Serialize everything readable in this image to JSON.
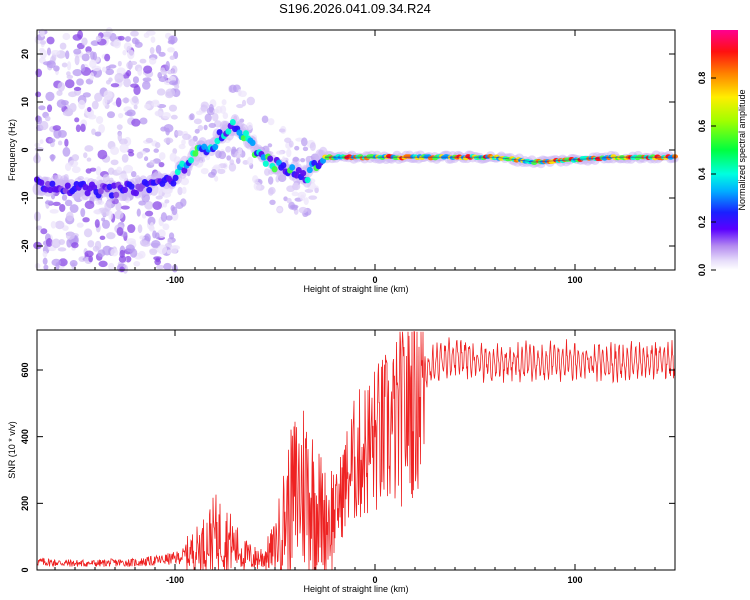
{
  "title": "S196.2026.041.09.34.R24",
  "colors": {
    "snr_line": "#ee2222",
    "spectrum_line": "#3a0a9a",
    "frame": "#000000",
    "background": "#ffffff"
  },
  "chart_data": [
    {
      "type": "heatmap",
      "title": "S196.2026.041.09.34.R24",
      "xlabel": "Height of straight line (km)",
      "ylabel": "Frequency (Hz)",
      "xlim": [
        -169,
        150
      ],
      "ylim": [
        -25,
        25
      ],
      "xticks": [
        -100,
        0,
        100
      ],
      "xtick_labels": [
        "-100",
        "0",
        "100"
      ],
      "yticks": [
        -20,
        -10,
        0,
        10,
        20
      ],
      "ytick_labels": [
        "-20",
        "-10",
        "0",
        "10",
        "20"
      ],
      "grid": false,
      "peak_ridge": {
        "x": [
          -169,
          -150,
          -135,
          -120,
          -110,
          -100,
          -95,
          -90,
          -85,
          -80,
          -75,
          -70,
          -65,
          -60,
          -55,
          -50,
          -45,
          -40,
          -35,
          -30,
          -25,
          -20,
          -10,
          0,
          20,
          40,
          60,
          80,
          100,
          120,
          150
        ],
        "frequency": [
          -7,
          -8,
          -8.5,
          -8,
          -7,
          -6,
          -3,
          -1,
          0.5,
          1.5,
          4,
          5,
          3,
          0,
          -2,
          -3,
          -4,
          -4.5,
          -6,
          -3,
          -1.5,
          -1.5,
          -1.5,
          -1.5,
          -1.5,
          -1.5,
          -1.5,
          -2.5,
          -2,
          -1.5,
          -1.5
        ]
      },
      "colorbar": {
        "label": "Normalized spectral amplitude",
        "range": [
          0,
          1
        ],
        "ticks": [
          0.0,
          0.2,
          0.4,
          0.6,
          0.8
        ],
        "tick_labels": [
          "0.0",
          "0.2",
          "0.4",
          "0.6",
          "0.8"
        ],
        "colormap": [
          "#ffffff",
          "#d6c8f5",
          "#7a2dd8",
          "#2a00ff",
          "#00a0ff",
          "#00ffff",
          "#00ff40",
          "#ffff00",
          "#ff8000",
          "#ff0000",
          "#ff0090"
        ]
      }
    },
    {
      "type": "line",
      "xlabel": "Height of straight line (km)",
      "ylabel": "SNR (10 * v/v)",
      "xlim": [
        -169,
        150
      ],
      "ylim": [
        0,
        720
      ],
      "xticks": [
        -100,
        0,
        100
      ],
      "xtick_labels": [
        "-100",
        "0",
        "100"
      ],
      "yticks": [
        0,
        200,
        400,
        600
      ],
      "ytick_labels": [
        "0",
        "200",
        "400",
        "600"
      ],
      "grid": false,
      "series": [
        {
          "name": "SNR",
          "x": [
            -169,
            -160,
            -150,
            -140,
            -130,
            -120,
            -110,
            -100,
            -95,
            -90,
            -85,
            -80,
            -75,
            -70,
            -65,
            -60,
            -55,
            -50,
            -45,
            -40,
            -35,
            -30,
            -25,
            -20,
            -15,
            -10,
            -5,
            0,
            5,
            10,
            15,
            20,
            25,
            30,
            40,
            50,
            60,
            80,
            100,
            120,
            150
          ],
          "values": [
            25,
            22,
            20,
            20,
            22,
            22,
            28,
            35,
            45,
            60,
            80,
            110,
            100,
            70,
            45,
            35,
            40,
            70,
            160,
            230,
            260,
            200,
            150,
            170,
            260,
            330,
            360,
            390,
            410,
            430,
            480,
            540,
            600,
            620,
            640,
            630,
            620,
            625,
            630,
            620,
            630
          ]
        }
      ]
    }
  ]
}
